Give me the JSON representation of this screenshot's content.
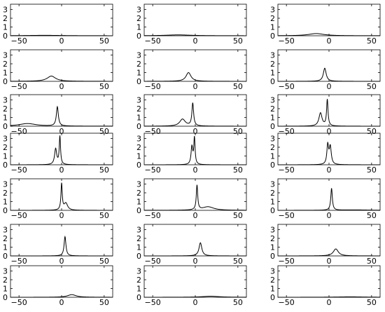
{
  "chart_data": {
    "type": "line",
    "layout": "7x3 grid of small multiples",
    "xlim": [
      -60,
      60
    ],
    "ylim": [
      0,
      3.6
    ],
    "xticks": [
      -50,
      0,
      50
    ],
    "yticks": [
      0,
      1,
      2,
      3
    ],
    "x_tick_labels": [
      "−50",
      "0",
      "50"
    ],
    "y_tick_labels": [
      "0",
      "1",
      "2",
      "3"
    ],
    "grid": false,
    "line_color": "#000000",
    "panels": [
      {
        "peaks": [
          {
            "center": -20,
            "amplitude": 0.05,
            "width": 25
          }
        ]
      },
      {
        "peaks": [
          {
            "center": -20,
            "amplitude": 0.1,
            "width": 18
          }
        ]
      },
      {
        "peaks": [
          {
            "center": -15,
            "amplitude": 0.25,
            "width": 11
          }
        ]
      },
      {
        "peaks": [
          {
            "center": -12,
            "amplitude": 0.6,
            "width": 6
          }
        ]
      },
      {
        "peaks": [
          {
            "center": -8,
            "amplitude": 1.0,
            "width": 3.5
          }
        ]
      },
      {
        "peaks": [
          {
            "center": -5,
            "amplitude": 1.5,
            "width": 2
          }
        ]
      },
      {
        "peaks": [
          {
            "center": -40,
            "amplitude": 0.3,
            "width": 12
          },
          {
            "center": -5,
            "amplitude": 2.2,
            "width": 1.4
          }
        ]
      },
      {
        "peaks": [
          {
            "center": -15,
            "amplitude": 0.8,
            "width": 4
          },
          {
            "center": -3,
            "amplitude": 2.6,
            "width": 1.2
          }
        ]
      },
      {
        "peaks": [
          {
            "center": -10,
            "amplitude": 1.5,
            "width": 2.2
          },
          {
            "center": -2,
            "amplitude": 3.0,
            "width": 1.0
          }
        ]
      },
      {
        "peaks": [
          {
            "center": -7,
            "amplitude": 1.8,
            "width": 1.5
          },
          {
            "center": -2,
            "amplitude": 3.2,
            "width": 0.9
          }
        ]
      },
      {
        "peaks": [
          {
            "center": -4,
            "amplitude": 2.0,
            "width": 1.2
          },
          {
            "center": -1,
            "amplitude": 3.0,
            "width": 0.9
          }
        ]
      },
      {
        "peaks": [
          {
            "center": -1.5,
            "amplitude": 2.2,
            "width": 1.2
          },
          {
            "center": 1.5,
            "amplitude": 2.0,
            "width": 1.4
          }
        ]
      },
      {
        "peaks": [
          {
            "center": 0,
            "amplitude": 3.0,
            "width": 0.9
          },
          {
            "center": 5,
            "amplitude": 0.8,
            "width": 2.5
          }
        ]
      },
      {
        "peaks": [
          {
            "center": 2,
            "amplitude": 2.8,
            "width": 1.0
          },
          {
            "center": 15,
            "amplitude": 0.4,
            "width": 8
          }
        ]
      },
      {
        "peaks": [
          {
            "center": 3,
            "amplitude": 2.5,
            "width": 1.1
          },
          {
            "center": 30,
            "amplitude": 0.05,
            "width": 20
          }
        ]
      },
      {
        "peaks": [
          {
            "center": 4,
            "amplitude": 2.2,
            "width": 1.3
          }
        ]
      },
      {
        "peaks": [
          {
            "center": 6,
            "amplitude": 1.5,
            "width": 2
          }
        ]
      },
      {
        "peaks": [
          {
            "center": 8,
            "amplitude": 0.8,
            "width": 3.5
          }
        ]
      },
      {
        "peaks": [
          {
            "center": 12,
            "amplitude": 0.3,
            "width": 6
          }
        ]
      },
      {
        "peaks": [
          {
            "center": 18,
            "amplitude": 0.12,
            "width": 12
          }
        ]
      },
      {
        "peaks": [
          {
            "center": 25,
            "amplitude": 0.05,
            "width": 20
          }
        ]
      }
    ]
  }
}
